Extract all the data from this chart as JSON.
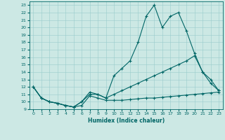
{
  "xlabel": "Humidex (Indice chaleur)",
  "background_color": "#cce8e4",
  "line_color": "#006666",
  "xlim": [
    -0.5,
    23.5
  ],
  "ylim": [
    9,
    23.5
  ],
  "xticks": [
    0,
    1,
    2,
    3,
    4,
    5,
    6,
    7,
    8,
    9,
    10,
    11,
    12,
    13,
    14,
    15,
    16,
    17,
    18,
    19,
    20,
    21,
    22,
    23
  ],
  "yticks": [
    9,
    10,
    11,
    12,
    13,
    14,
    15,
    16,
    17,
    18,
    19,
    20,
    21,
    22,
    23
  ],
  "line1_x": [
    0,
    1,
    2,
    3,
    4,
    5,
    6,
    7,
    8,
    9,
    10,
    11,
    12,
    13,
    14,
    15,
    16,
    17,
    18,
    19,
    20,
    21,
    22,
    23
  ],
  "line1_y": [
    12,
    10.5,
    10,
    9.8,
    9.5,
    9.3,
    9.5,
    10.8,
    10.5,
    10.2,
    10.2,
    10.2,
    10.3,
    10.4,
    10.5,
    10.5,
    10.6,
    10.7,
    10.8,
    10.9,
    11.0,
    11.1,
    11.2,
    11.3
  ],
  "line2_x": [
    0,
    1,
    2,
    3,
    4,
    5,
    6,
    7,
    8,
    9,
    10,
    11,
    12,
    13,
    14,
    15,
    16,
    17,
    18,
    19,
    20,
    21,
    22,
    23
  ],
  "line2_y": [
    12,
    10.5,
    10,
    9.8,
    9.5,
    9.3,
    10,
    11.3,
    11,
    10.5,
    13.5,
    14.5,
    15.5,
    18.0,
    21.5,
    23.0,
    20.0,
    21.5,
    22.0,
    19.5,
    16.5,
    14.0,
    12.5,
    11.5
  ],
  "line3_x": [
    0,
    1,
    2,
    3,
    4,
    5,
    6,
    7,
    8,
    9,
    10,
    11,
    12,
    13,
    14,
    15,
    16,
    17,
    18,
    19,
    20,
    21,
    22,
    23
  ],
  "line3_y": [
    12,
    10.5,
    10,
    9.8,
    9.5,
    9.3,
    10,
    11,
    11,
    10.5,
    11.0,
    11.5,
    12.0,
    12.5,
    13.0,
    13.5,
    14.0,
    14.5,
    15.0,
    15.5,
    16.2,
    14.0,
    13.0,
    11.5
  ]
}
